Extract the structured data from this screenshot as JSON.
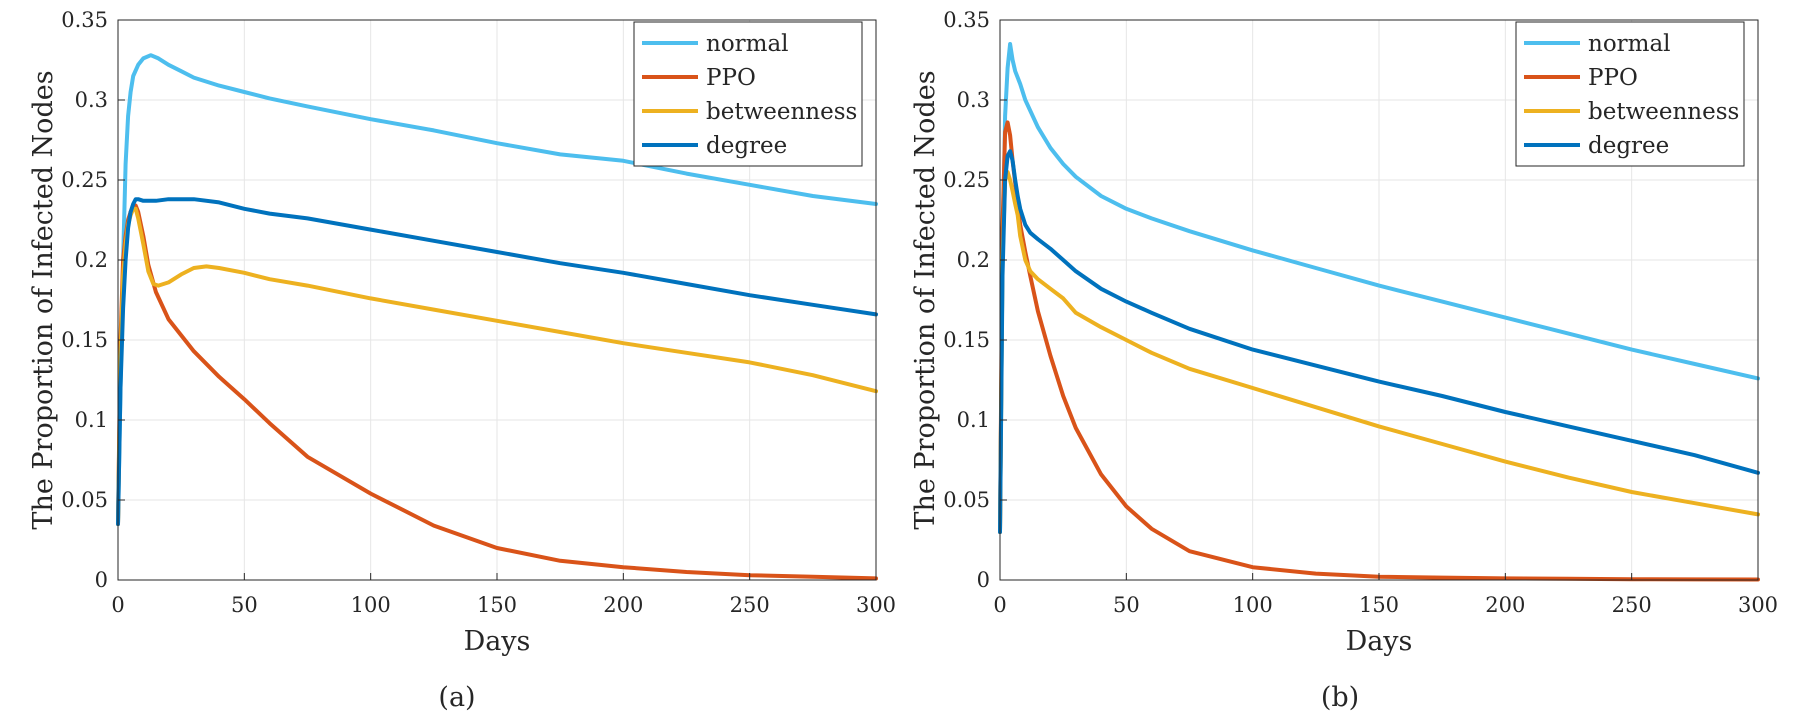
{
  "chart_data": [
    {
      "type": "line",
      "panel_label": "(a)",
      "xlabel": "Days",
      "ylabel": "The Proportion of Infected Nodes",
      "xlim": [
        0,
        300
      ],
      "ylim": [
        0,
        0.35
      ],
      "xticks": [
        "0",
        "50",
        "100",
        "150",
        "200",
        "250",
        "300"
      ],
      "yticks": [
        "0",
        "0.05",
        "0.1",
        "0.15",
        "0.2",
        "0.25",
        "0.3",
        "0.35"
      ],
      "grid": true,
      "legend": "top-right",
      "series": [
        {
          "name": "normal",
          "color": "#4DBEEE",
          "x": [
            0,
            1,
            2,
            3,
            4,
            5,
            6,
            8,
            10,
            13,
            16,
            20,
            25,
            30,
            40,
            50,
            60,
            75,
            100,
            125,
            150,
            175,
            200,
            225,
            250,
            275,
            300
          ],
          "y": [
            0.035,
            0.12,
            0.2,
            0.26,
            0.29,
            0.305,
            0.315,
            0.322,
            0.326,
            0.328,
            0.326,
            0.322,
            0.318,
            0.314,
            0.309,
            0.305,
            0.301,
            0.296,
            0.288,
            0.281,
            0.273,
            0.266,
            0.262,
            0.254,
            0.247,
            0.24,
            0.235
          ]
        },
        {
          "name": "PPO",
          "color": "#D95319",
          "x": [
            0,
            1,
            2,
            3,
            4,
            5,
            6,
            7,
            8,
            10,
            12,
            15,
            20,
            30,
            40,
            50,
            60,
            75,
            100,
            125,
            150,
            175,
            200,
            225,
            250,
            275,
            300
          ],
          "y": [
            0.035,
            0.15,
            0.2,
            0.215,
            0.225,
            0.23,
            0.233,
            0.234,
            0.23,
            0.215,
            0.197,
            0.18,
            0.163,
            0.143,
            0.127,
            0.113,
            0.098,
            0.077,
            0.054,
            0.034,
            0.02,
            0.012,
            0.008,
            0.005,
            0.003,
            0.002,
            0.001
          ]
        },
        {
          "name": "betweenness",
          "color": "#EDB120",
          "x": [
            0,
            1,
            2,
            3,
            4,
            5,
            6,
            7,
            8,
            10,
            12,
            14,
            16,
            20,
            25,
            30,
            35,
            40,
            50,
            60,
            75,
            100,
            125,
            150,
            175,
            200,
            225,
            250,
            275,
            300
          ],
          "y": [
            0.035,
            0.14,
            0.19,
            0.21,
            0.222,
            0.228,
            0.232,
            0.232,
            0.226,
            0.21,
            0.193,
            0.185,
            0.184,
            0.186,
            0.191,
            0.195,
            0.196,
            0.195,
            0.192,
            0.188,
            0.184,
            0.176,
            0.169,
            0.162,
            0.155,
            0.148,
            0.142,
            0.136,
            0.128,
            0.118
          ]
        },
        {
          "name": "degree",
          "color": "#0072BD",
          "x": [
            0,
            1,
            2,
            3,
            4,
            5,
            6,
            7,
            8,
            10,
            15,
            20,
            30,
            40,
            50,
            60,
            75,
            100,
            125,
            150,
            175,
            200,
            225,
            250,
            275,
            300
          ],
          "y": [
            0.035,
            0.12,
            0.17,
            0.2,
            0.22,
            0.23,
            0.235,
            0.238,
            0.238,
            0.237,
            0.237,
            0.238,
            0.238,
            0.236,
            0.232,
            0.229,
            0.226,
            0.219,
            0.212,
            0.205,
            0.198,
            0.192,
            0.185,
            0.178,
            0.172,
            0.166
          ]
        }
      ]
    },
    {
      "type": "line",
      "panel_label": "(b)",
      "xlabel": "Days",
      "ylabel": "The Proportion of Infected Nodes",
      "xlim": [
        0,
        300
      ],
      "ylim": [
        0,
        0.35
      ],
      "xticks": [
        "0",
        "50",
        "100",
        "150",
        "200",
        "250",
        "300"
      ],
      "yticks": [
        "0",
        "0.05",
        "0.1",
        "0.15",
        "0.2",
        "0.25",
        "0.3",
        "0.35"
      ],
      "grid": true,
      "legend": "top-right",
      "series": [
        {
          "name": "normal",
          "color": "#4DBEEE",
          "x": [
            0,
            1,
            2,
            3,
            4,
            5,
            6,
            8,
            10,
            15,
            20,
            25,
            30,
            40,
            50,
            60,
            75,
            100,
            125,
            150,
            175,
            200,
            225,
            250,
            275,
            300
          ],
          "y": [
            0.03,
            0.2,
            0.29,
            0.32,
            0.335,
            0.325,
            0.318,
            0.31,
            0.3,
            0.283,
            0.27,
            0.26,
            0.252,
            0.24,
            0.232,
            0.226,
            0.218,
            0.206,
            0.195,
            0.184,
            0.174,
            0.164,
            0.154,
            0.144,
            0.135,
            0.126
          ]
        },
        {
          "name": "PPO",
          "color": "#D95319",
          "x": [
            0,
            1,
            2,
            3,
            4,
            5,
            6,
            7,
            8,
            10,
            12,
            15,
            20,
            25,
            30,
            40,
            50,
            60,
            75,
            100,
            125,
            150,
            175,
            200,
            225,
            250,
            275,
            300
          ],
          "y": [
            0.03,
            0.22,
            0.28,
            0.286,
            0.278,
            0.262,
            0.248,
            0.235,
            0.222,
            0.205,
            0.19,
            0.168,
            0.14,
            0.115,
            0.095,
            0.066,
            0.046,
            0.032,
            0.018,
            0.008,
            0.004,
            0.002,
            0.0015,
            0.001,
            0.0008,
            0.0005,
            0.0004,
            0.0003
          ]
        },
        {
          "name": "betweenness",
          "color": "#EDB120",
          "x": [
            0,
            1,
            2,
            3,
            4,
            5,
            6,
            7,
            8,
            10,
            12,
            15,
            20,
            25,
            30,
            40,
            50,
            60,
            75,
            100,
            125,
            150,
            175,
            200,
            225,
            250,
            275,
            300
          ],
          "y": [
            0.03,
            0.2,
            0.25,
            0.255,
            0.25,
            0.243,
            0.235,
            0.228,
            0.215,
            0.2,
            0.193,
            0.188,
            0.182,
            0.176,
            0.167,
            0.158,
            0.15,
            0.142,
            0.132,
            0.12,
            0.108,
            0.096,
            0.085,
            0.074,
            0.064,
            0.055,
            0.048,
            0.041
          ]
        },
        {
          "name": "degree",
          "color": "#0072BD",
          "x": [
            0,
            1,
            2,
            3,
            4,
            5,
            6,
            7,
            8,
            10,
            12,
            15,
            20,
            25,
            30,
            40,
            50,
            60,
            75,
            100,
            125,
            150,
            175,
            200,
            225,
            250,
            275,
            300
          ],
          "y": [
            0.03,
            0.19,
            0.25,
            0.265,
            0.268,
            0.262,
            0.25,
            0.24,
            0.232,
            0.222,
            0.217,
            0.213,
            0.207,
            0.2,
            0.193,
            0.182,
            0.174,
            0.167,
            0.157,
            0.144,
            0.134,
            0.124,
            0.115,
            0.105,
            0.096,
            0.087,
            0.078,
            0.067
          ]
        }
      ]
    }
  ]
}
